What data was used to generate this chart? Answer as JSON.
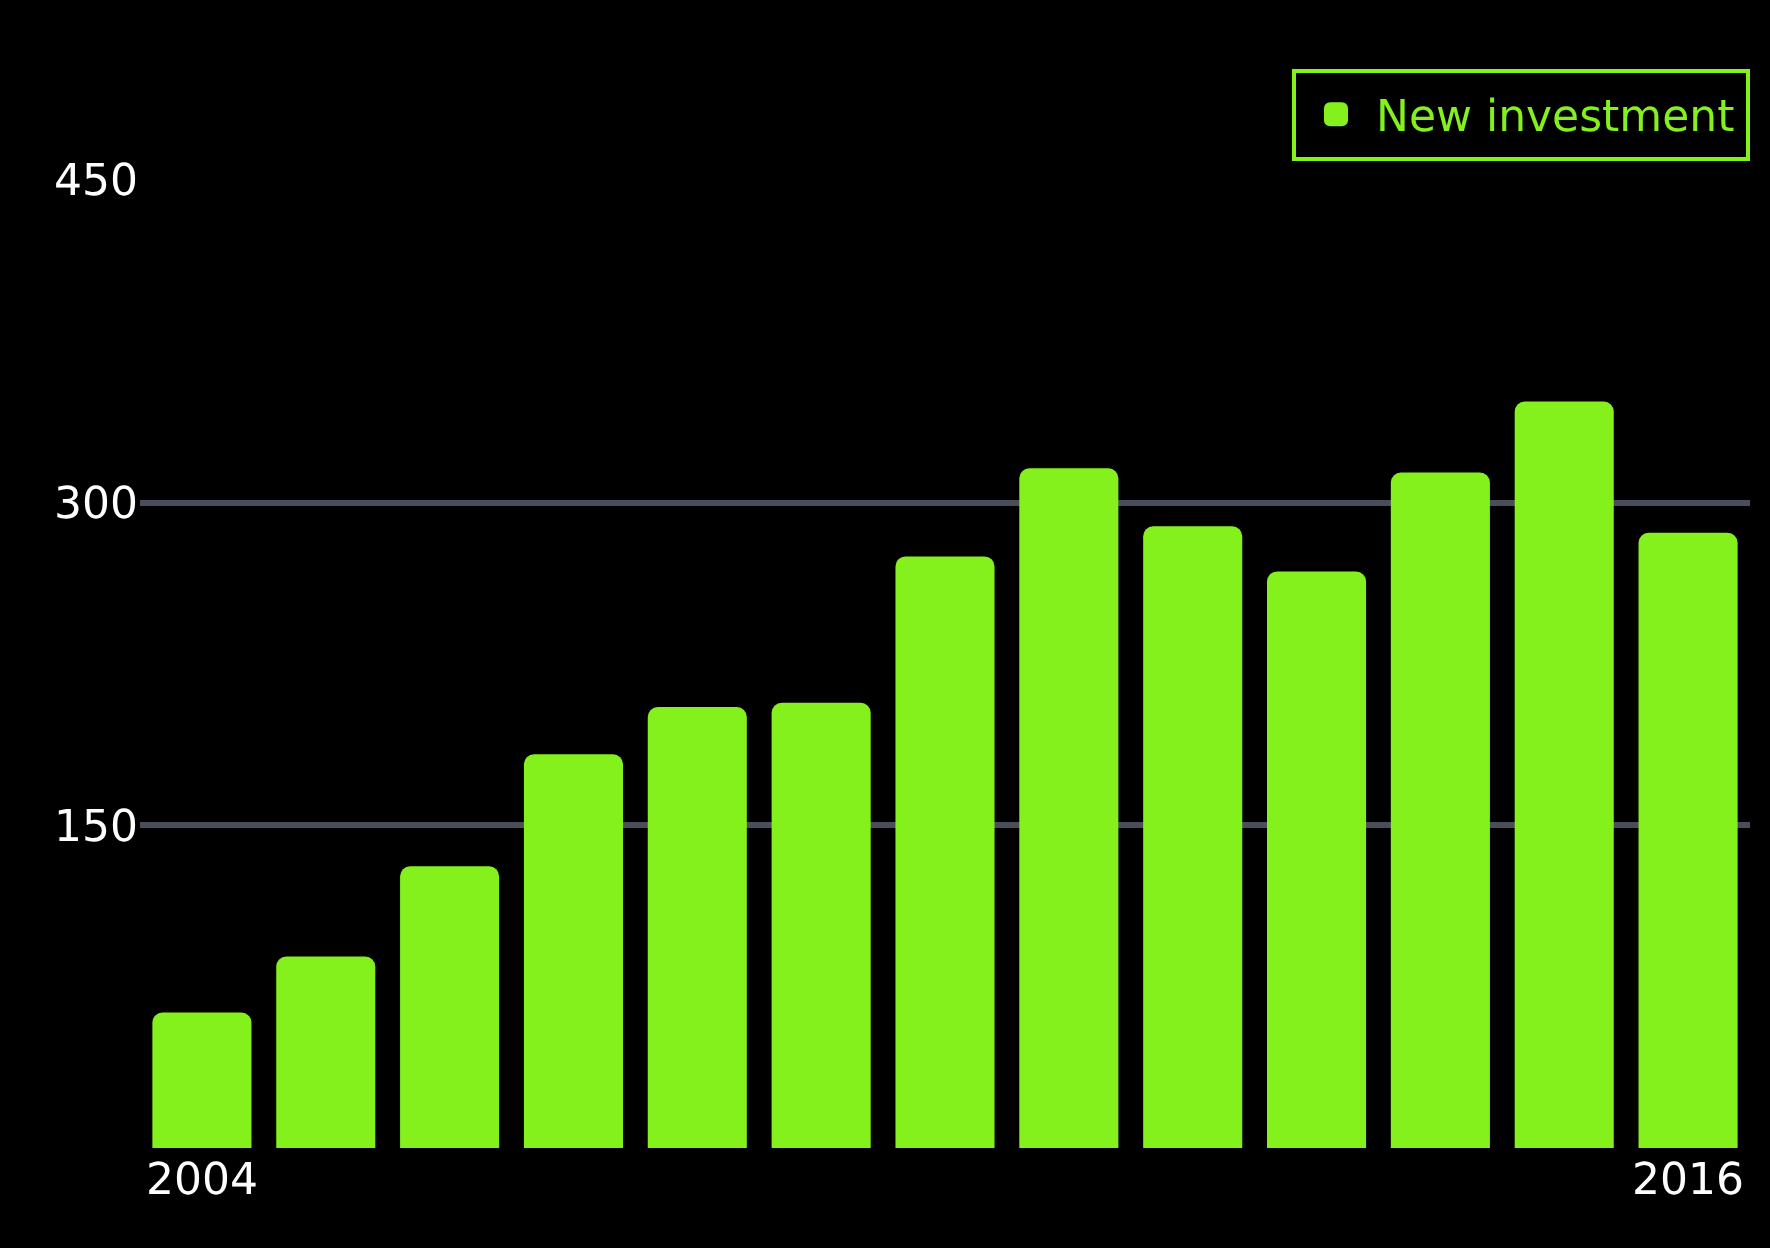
{
  "chart_data": {
    "type": "bar",
    "categories": [
      "2004",
      null,
      null,
      null,
      null,
      null,
      null,
      null,
      null,
      null,
      null,
      null,
      "2016"
    ],
    "series": [
      {
        "name": "New investment",
        "color": "#84f01c",
        "values": [
          63,
          89,
          131,
          183,
          205,
          207,
          275,
          316,
          289,
          268,
          314,
          347,
          286
        ]
      }
    ],
    "ylim": [
      0,
      450
    ],
    "yticks": [
      150,
      300,
      450
    ],
    "grid": "y",
    "legend": "top right"
  }
}
